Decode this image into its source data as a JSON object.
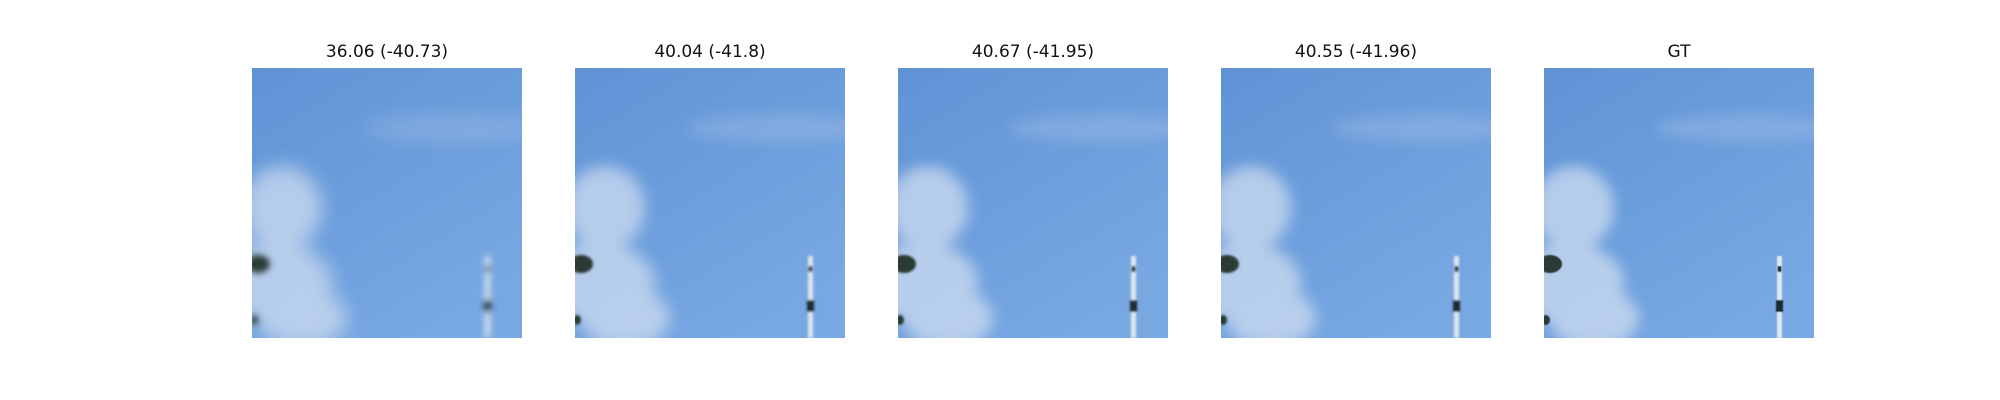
{
  "panels": [
    {
      "title": "36.06 (-40.73)",
      "blur": 3.2
    },
    {
      "title": "40.04 (-41.8)",
      "blur": 1.4
    },
    {
      "title": "40.67 (-41.95)",
      "blur": 1.0
    },
    {
      "title": "40.55 (-41.96)",
      "blur": 1.1
    },
    {
      "title": "GT",
      "blur": 0.4
    }
  ],
  "colors": {
    "sky_top": "#5f93d6",
    "sky_bottom": "#78a8e2",
    "cloud": "#cfdcf0",
    "foliage": "#2c3a34",
    "mast": "#dfe6ef",
    "mast_dark": "#1f2a33"
  }
}
